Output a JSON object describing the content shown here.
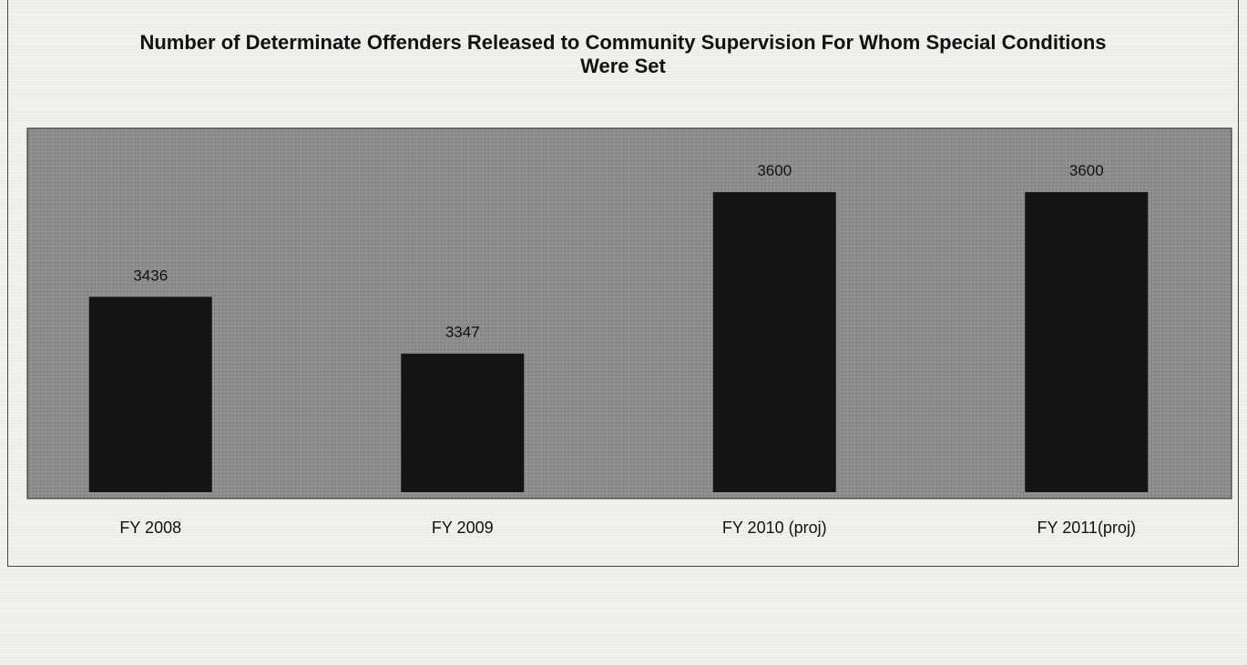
{
  "chart_data": {
    "type": "bar",
    "title": "Number of Determinate Offenders Released to Community Supervision For Whom Special Conditions Were Set",
    "categories": [
      "FY 2008",
      "FY 2009",
      "FY 2010 (proj)",
      "FY 2011(proj)"
    ],
    "values": [
      3436,
      3347,
      3600,
      3600
    ],
    "data_labels": [
      "3436",
      "3347",
      "3600",
      "3600"
    ],
    "xlabel": "",
    "ylabel": "",
    "ylim": [
      3130,
      3700
    ],
    "grid": false,
    "legend": "none",
    "bar_color": "#141414",
    "plot_background": "#8c8c8c"
  }
}
